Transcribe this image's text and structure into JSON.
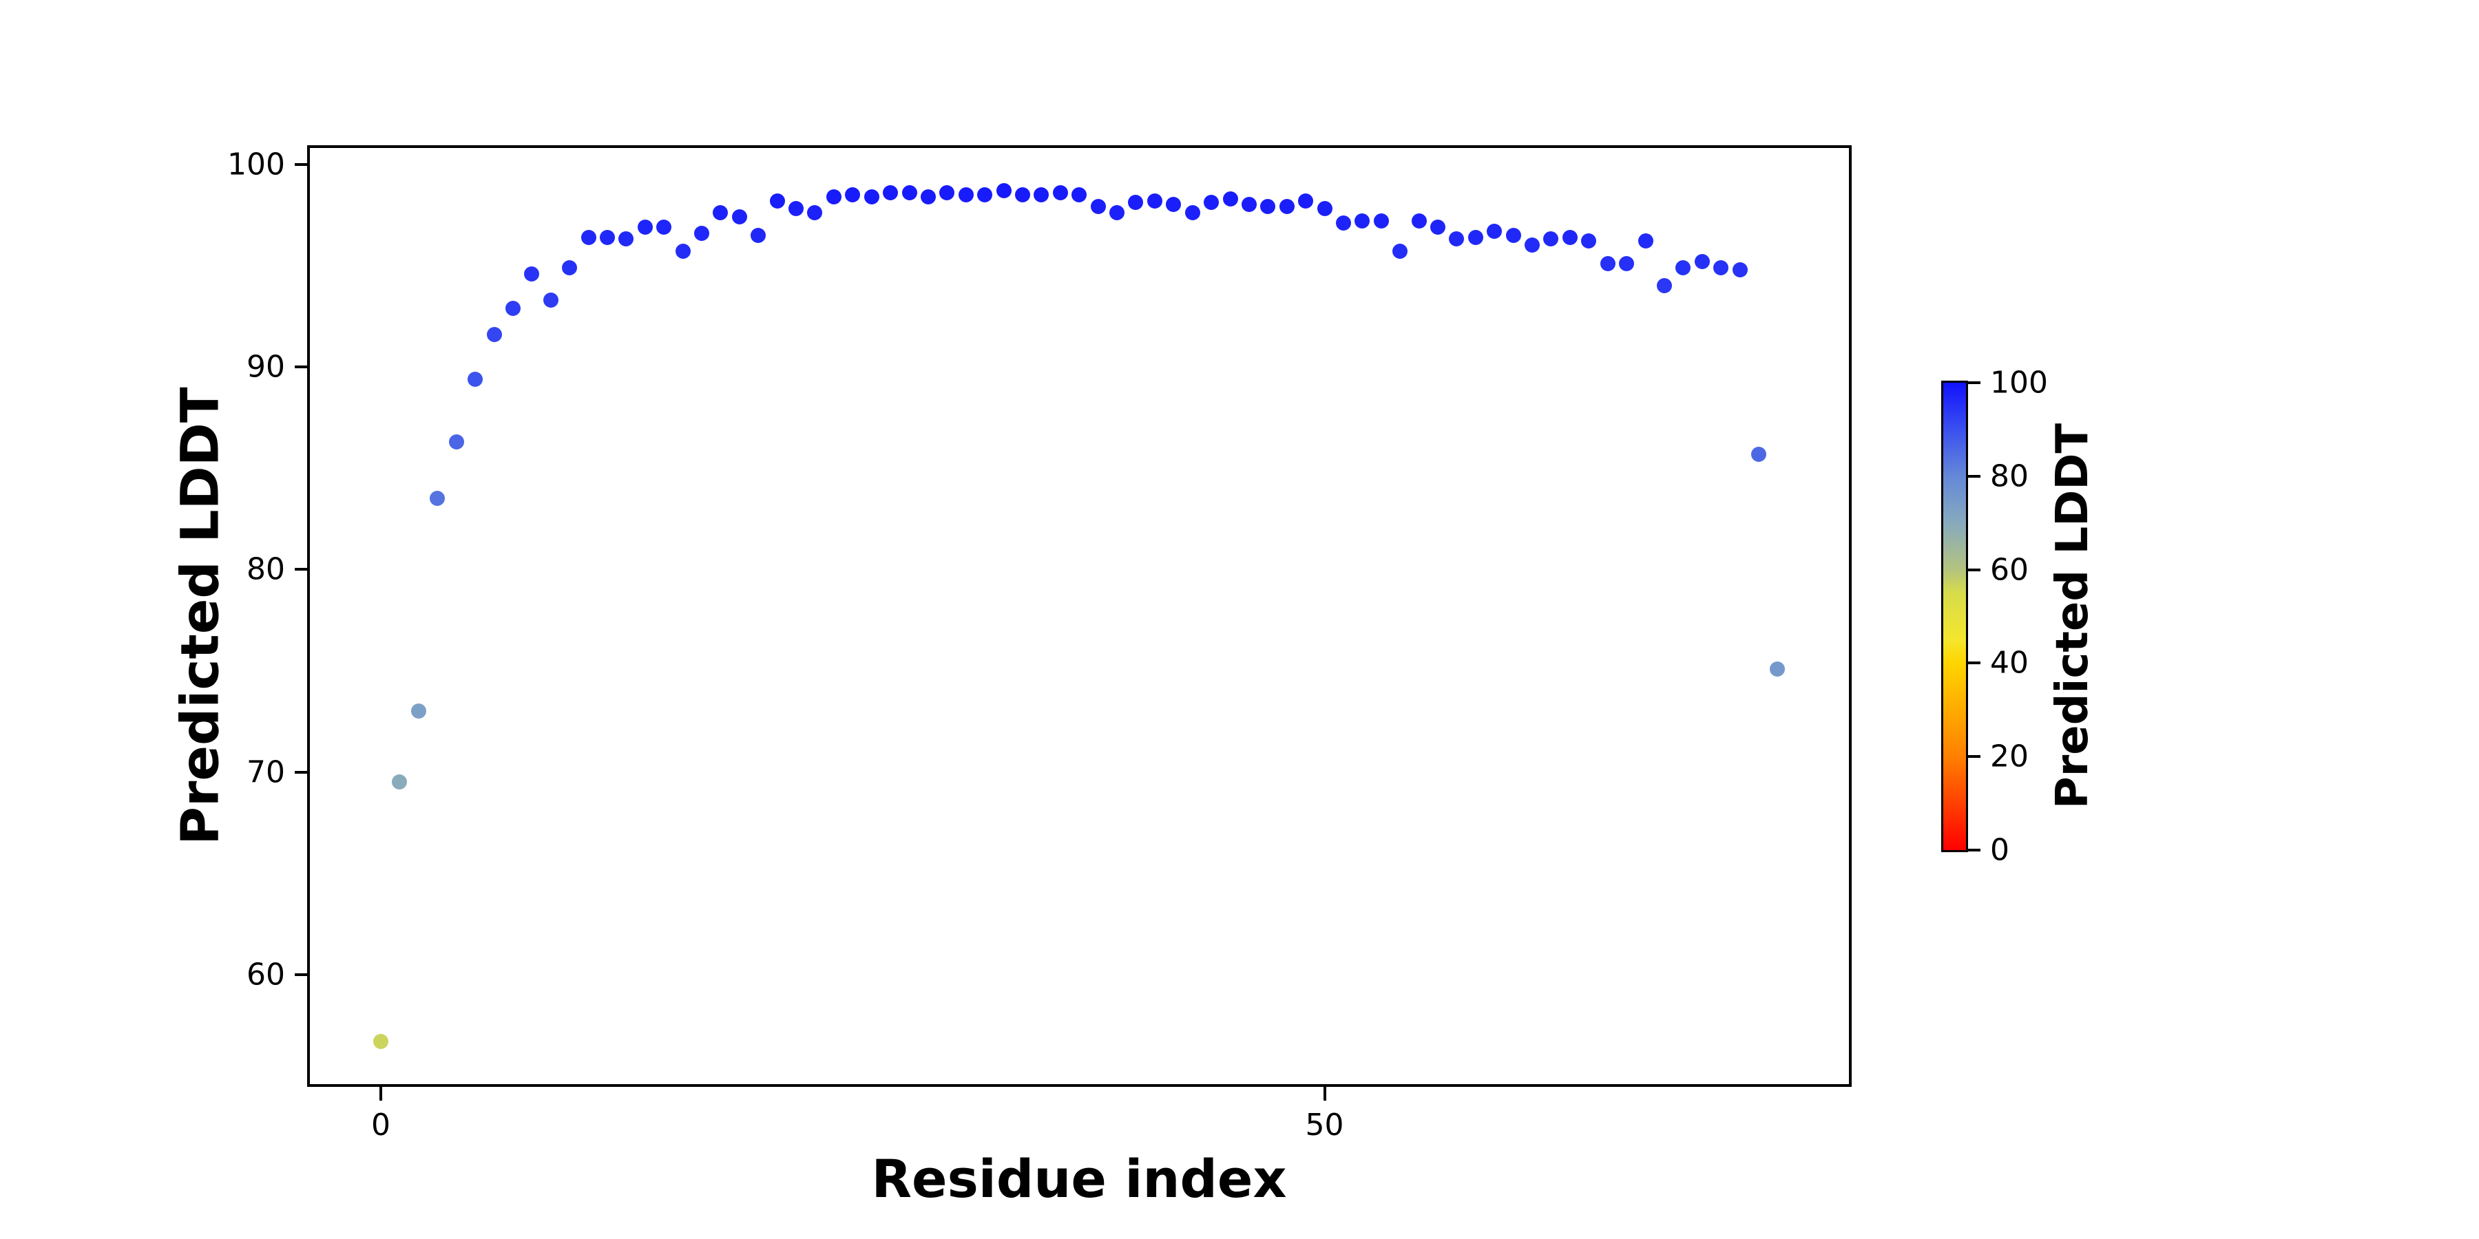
{
  "figure": {
    "background_color": "#ffffff",
    "text_color": "#000000"
  },
  "chart_data": {
    "type": "scatter",
    "title": "",
    "xlabel": "Residue index",
    "ylabel": "Predicted LDDT",
    "xlim": [
      -3.76,
      77.78
    ],
    "ylim": [
      54.6,
      100.8
    ],
    "x_ticks": [
      0,
      50
    ],
    "y_ticks": [
      60,
      70,
      80,
      90,
      100
    ],
    "grid": "off",
    "marker": "circle",
    "series": [
      {
        "name": "per-residue predicted LDDT",
        "x": [
          0,
          1,
          2,
          3,
          4,
          5,
          6,
          7,
          8,
          9,
          10,
          11,
          12,
          13,
          14,
          15,
          16,
          17,
          18,
          19,
          20,
          21,
          22,
          23,
          24,
          25,
          26,
          27,
          28,
          29,
          30,
          31,
          32,
          33,
          34,
          35,
          36,
          37,
          38,
          39,
          40,
          41,
          42,
          43,
          44,
          45,
          46,
          47,
          48,
          49,
          50,
          51,
          52,
          53,
          54,
          55,
          56,
          57,
          58,
          59,
          60,
          61,
          62,
          63,
          64,
          65,
          66,
          67,
          68,
          69,
          70,
          71,
          72,
          73,
          74
        ],
        "y": [
          56.7,
          69.5,
          73.0,
          83.5,
          86.3,
          89.4,
          91.6,
          92.9,
          94.6,
          93.3,
          94.9,
          96.4,
          96.4,
          96.3,
          96.9,
          96.9,
          95.7,
          96.6,
          97.6,
          97.4,
          96.5,
          98.2,
          97.8,
          97.6,
          98.4,
          98.5,
          98.4,
          98.6,
          98.6,
          98.4,
          98.6,
          98.5,
          98.5,
          98.7,
          98.5,
          98.5,
          98.6,
          98.5,
          97.9,
          97.6,
          98.1,
          98.2,
          98.0,
          97.6,
          98.1,
          98.3,
          98.0,
          97.9,
          97.9,
          98.2,
          97.8,
          97.1,
          97.2,
          97.2,
          95.7,
          97.2,
          96.9,
          96.3,
          96.4,
          96.7,
          96.5,
          96.0,
          96.3,
          96.4,
          96.2,
          95.1,
          95.1,
          96.2,
          94.0,
          94.9,
          95.2,
          94.9,
          94.8,
          85.7,
          75.1
        ]
      }
    ],
    "colorbar": {
      "label": "Predicted LDDT",
      "range": [
        0,
        100
      ],
      "ticks": [
        0,
        20,
        40,
        60,
        80,
        100
      ],
      "stops": [
        {
          "v": 0,
          "c": "#ff0000"
        },
        {
          "v": 20,
          "c": "#ff8000"
        },
        {
          "v": 40,
          "c": "#ffd500"
        },
        {
          "v": 45,
          "c": "#f5e62d"
        },
        {
          "v": 55,
          "c": "#d7dc4b"
        },
        {
          "v": 60,
          "c": "#b4c37e"
        },
        {
          "v": 70,
          "c": "#87aabe"
        },
        {
          "v": 80,
          "c": "#6488d8"
        },
        {
          "v": 90,
          "c": "#3a50ef"
        },
        {
          "v": 100,
          "c": "#1212fc"
        }
      ]
    }
  }
}
